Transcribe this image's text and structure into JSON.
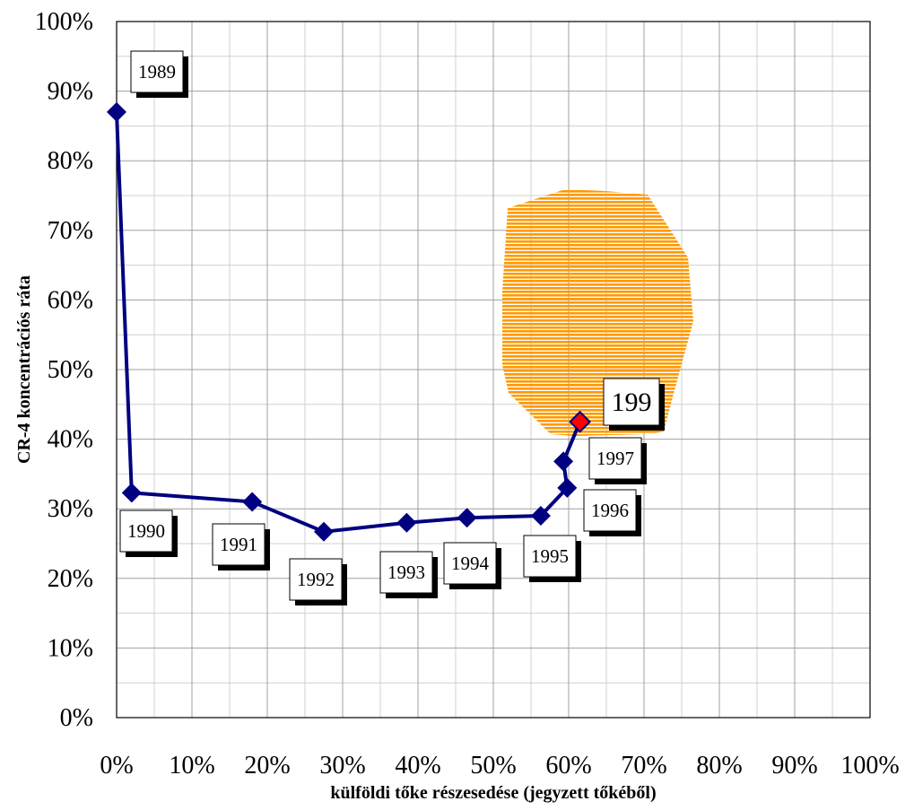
{
  "chart_data": {
    "type": "scatter",
    "title": "",
    "xlabel": "külföldi tőke részesedése (jegyzett tőkéből)",
    "ylabel": "CR-4 koncentrációs ráta",
    "xlim": [
      0,
      100
    ],
    "ylim": [
      0,
      100
    ],
    "xticks": [
      "0%",
      "10%",
      "20%",
      "30%",
      "40%",
      "50%",
      "60%",
      "70%",
      "80%",
      "90%",
      "100%"
    ],
    "yticks": [
      "0%",
      "10%",
      "20%",
      "30%",
      "40%",
      "50%",
      "60%",
      "70%",
      "80%",
      "90%",
      "100%"
    ],
    "grid": true,
    "legend": "none",
    "series": [
      {
        "color": "#000080",
        "marker": "diamond",
        "points": [
          {
            "label": "1989",
            "x": 0,
            "y": 87
          },
          {
            "label": "1990",
            "x": 2,
            "y": 32.3
          },
          {
            "label": "1991",
            "x": 18,
            "y": 31
          },
          {
            "label": "1992",
            "x": 27.5,
            "y": 26.7
          },
          {
            "label": "1993",
            "x": 38.5,
            "y": 28
          },
          {
            "label": "1994",
            "x": 46.5,
            "y": 28.7
          },
          {
            "label": "1995",
            "x": 56.3,
            "y": 29
          },
          {
            "label": "1996",
            "x": 59.8,
            "y": 33
          },
          {
            "label": "1997",
            "x": 59.3,
            "y": 36.8
          },
          {
            "label": "199",
            "x": 61.5,
            "y": 42.5
          }
        ]
      }
    ],
    "highlight_point": {
      "label": "199",
      "color": "#ff0000"
    },
    "region": {
      "color": "#ff9900",
      "description_hidden": true
    }
  }
}
